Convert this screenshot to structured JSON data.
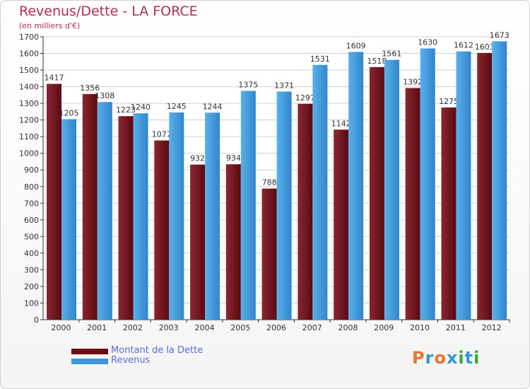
{
  "header": {
    "title": "Revenus/Dette - LA FORCE",
    "subtitle": "(en milliers d'€)"
  },
  "legend": [
    {
      "label": "Montant de la Dette",
      "color": "#6b0e18"
    },
    {
      "label": "Revenus",
      "color": "#3d97dd"
    }
  ],
  "logo": {
    "text": "Proxiti",
    "letter_colors": [
      "#e8762d",
      "#2f9bd6",
      "#e8762d",
      "#2f9bd6",
      "#3aa935",
      "#2f9bd6",
      "#3aa935"
    ]
  },
  "colors": {
    "dette": "#6b0e18",
    "revenus": "#3d97dd",
    "title": "#b02e5a",
    "grid": "#d0d0d0",
    "axis": "#333333"
  },
  "chart_data": {
    "type": "bar",
    "title": "Revenus/Dette - LA FORCE",
    "subtitle": "(en milliers d'€)",
    "xlabel": "",
    "ylabel": "",
    "categories": [
      "2000",
      "2001",
      "2002",
      "2003",
      "2004",
      "2005",
      "2006",
      "2007",
      "2008",
      "2009",
      "2010",
      "2011",
      "2012"
    ],
    "series": [
      {
        "name": "Montant de la Dette",
        "values": [
          1417,
          1356,
          1223,
          1077,
          932,
          934,
          788,
          1297,
          1142,
          1518,
          1392,
          1275,
          1603
        ]
      },
      {
        "name": "Revenus",
        "values": [
          1205,
          1308,
          1240,
          1245,
          1244,
          1375,
          1371,
          1531,
          1609,
          1561,
          1630,
          1612,
          1673
        ]
      }
    ],
    "y_ticks": [
      0,
      100,
      200,
      300,
      400,
      500,
      600,
      700,
      800,
      900,
      1000,
      1100,
      1200,
      1300,
      1400,
      1500,
      1600,
      1700
    ],
    "ylim": [
      0,
      1700
    ],
    "grid": true,
    "legend_position": "bottom-left"
  }
}
